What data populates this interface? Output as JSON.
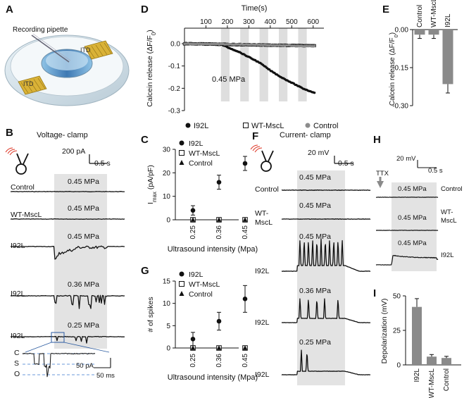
{
  "panels": {
    "A": {
      "letter": "A",
      "pipette_label": "Recording pipette",
      "itd_label": "ITD"
    },
    "B": {
      "letter": "B",
      "title": "Voltage- clamp",
      "scale_current": "200 pA",
      "scale_time": "0.5 s",
      "rows": [
        {
          "label": "Control",
          "pressure": "0.45 MPa"
        },
        {
          "label": "WT-MscL",
          "pressure": "0.45 MPa"
        },
        {
          "label": "I92L",
          "pressure": "0.45 MPa"
        },
        {
          "label": "I92L",
          "pressure": "0.36 MPa"
        },
        {
          "label": "I92L",
          "pressure": "0.25 MPa"
        }
      ],
      "inset": {
        "states": [
          "C",
          "S",
          "O"
        ],
        "scale_current": "50 pA",
        "scale_time": "50 ms"
      }
    },
    "C": {
      "letter": "C"
    },
    "D": {
      "letter": "D",
      "pressure": "0.45 MPa"
    },
    "E": {
      "letter": "E"
    },
    "F": {
      "letter": "F",
      "title": "Current- clamp",
      "scale_voltage": "20 mV",
      "scale_time": "0.5 s",
      "rows": [
        {
          "label": "Control",
          "pressure": "0.45 MPa"
        },
        {
          "label": "WT-MscL",
          "pressure": "0.45 MPa"
        },
        {
          "label": "I92L",
          "pressure": "0.45 MPa"
        },
        {
          "label": "I92L",
          "pressure": "0.36 MPa"
        },
        {
          "label": "I92L",
          "pressure": "0.25 MPa"
        }
      ]
    },
    "G": {
      "letter": "G"
    },
    "H": {
      "letter": "H",
      "stim_label": "TTX",
      "scale_voltage": "20 mV",
      "scale_time": "0.5 s",
      "rows": [
        {
          "label": "Control",
          "pressure": "0.45 MPa"
        },
        {
          "label": "WT-MscL",
          "pressure": "0.45 MPa"
        },
        {
          "label": "I92L",
          "pressure": "0.45 MPa"
        }
      ]
    },
    "I": {
      "letter": "I"
    }
  },
  "chart_data": [
    {
      "panel": "C",
      "type": "scatter",
      "xlabel": "Ultrasound intensity (Mpa)",
      "ylabel": "Imax (pA/pF)",
      "categories": [
        "0.25",
        "0.36",
        "0.45"
      ],
      "ylim": [
        0,
        30
      ],
      "yticks": [
        0,
        10,
        20,
        30
      ],
      "series": [
        {
          "name": "I92L",
          "marker": "circle-filled",
          "values": [
            4,
            16,
            24
          ],
          "errors": [
            2,
            3,
            3
          ]
        },
        {
          "name": "WT-MscL",
          "marker": "square-open",
          "values": [
            0,
            0,
            0
          ]
        },
        {
          "name": "Control",
          "marker": "triangle-filled",
          "values": [
            0,
            0,
            0
          ]
        }
      ]
    },
    {
      "panel": "G",
      "type": "scatter",
      "xlabel": "Ultrasound intensity (Mpa)",
      "ylabel": "# of spikes",
      "categories": [
        "0.25",
        "0.36",
        "0.45"
      ],
      "ylim": [
        0,
        15
      ],
      "yticks": [
        0,
        5,
        10,
        15
      ],
      "series": [
        {
          "name": "I92L",
          "marker": "circle-filled",
          "values": [
            2,
            6,
            11
          ],
          "errors": [
            1.5,
            2,
            3
          ]
        },
        {
          "name": "WT-MscL",
          "marker": "square-open",
          "values": [
            0,
            0,
            0
          ]
        },
        {
          "name": "Control",
          "marker": "triangle-filled",
          "values": [
            0,
            0,
            0
          ]
        }
      ]
    },
    {
      "panel": "D",
      "type": "line",
      "xlabel": "Time(s)",
      "ylabel": "Calcein release (ΔF/F0)",
      "xlim": [
        0,
        650
      ],
      "xticks": [
        100,
        200,
        300,
        400,
        500,
        600
      ],
      "ylim": [
        -0.3,
        0
      ],
      "yticks": [
        0,
        -0.1,
        -0.2,
        -0.3
      ],
      "ytick_labels": [
        "0.0",
        "-0.1",
        "-0.2",
        "-0.3"
      ],
      "stim_windows": [
        [
          170,
          210
        ],
        [
          260,
          300
        ],
        [
          350,
          390
        ],
        [
          440,
          480
        ],
        [
          530,
          570
        ]
      ],
      "series": [
        {
          "name": "I92L",
          "marker": "circle-filled",
          "x": [
            0,
            100,
            170,
            210,
            250,
            300,
            350,
            400,
            450,
            500,
            550,
            590,
            610
          ],
          "y": [
            0,
            0,
            -0.003,
            -0.02,
            -0.035,
            -0.06,
            -0.085,
            -0.12,
            -0.15,
            -0.175,
            -0.2,
            -0.215,
            -0.22
          ]
        },
        {
          "name": "WT-MscL",
          "marker": "square-open",
          "x": [
            0,
            300,
            610
          ],
          "y": [
            0,
            -0.005,
            -0.01
          ]
        },
        {
          "name": "Control",
          "marker": "circle-grey",
          "x": [
            0,
            300,
            610
          ],
          "y": [
            0,
            -0.004,
            -0.012
          ]
        }
      ]
    },
    {
      "panel": "E",
      "type": "bar",
      "ylabel": "Calcein release (ΔF/F0)",
      "categories": [
        "Control",
        "WT-MscL",
        "I92L"
      ],
      "values": [
        -0.02,
        -0.02,
        -0.215
      ],
      "errors": [
        0.015,
        0.015,
        0.035
      ],
      "ylim": [
        -0.3,
        0
      ],
      "yticks": [
        0,
        -0.15,
        -0.3
      ],
      "ytick_labels": [
        "0.00",
        "-0.15",
        "-0.30"
      ],
      "color": "#8a8a8a"
    },
    {
      "panel": "I",
      "type": "bar",
      "ylabel": "Depolarization (mV)",
      "categories": [
        "I92L",
        "WT-MscL",
        "Control"
      ],
      "values": [
        42,
        6,
        5
      ],
      "errors": [
        6,
        1.5,
        1.2
      ],
      "ylim": [
        0,
        50
      ],
      "yticks": [
        0,
        25,
        50
      ],
      "color": "#8a8a8a"
    }
  ]
}
